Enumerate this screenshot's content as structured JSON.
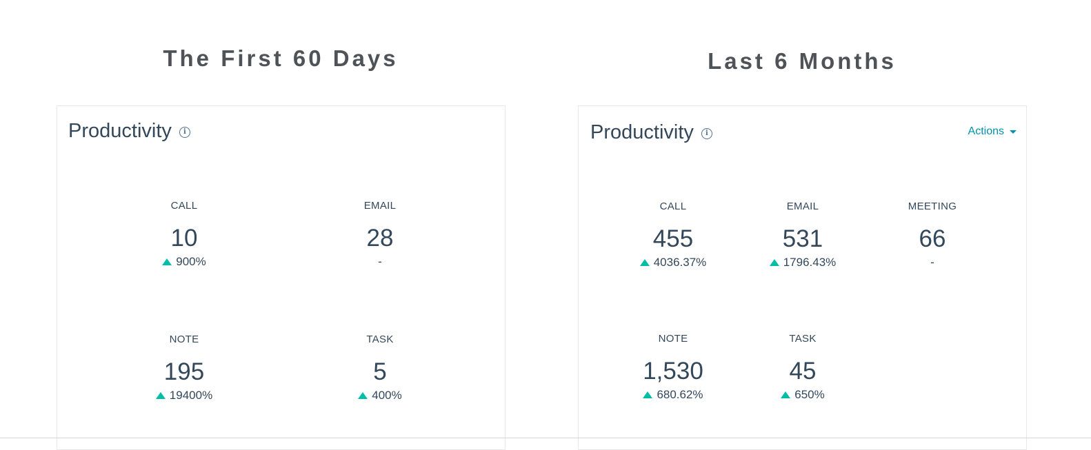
{
  "sections": [
    {
      "title": "The First 60 Days",
      "card_title": "Productivity",
      "metrics": [
        {
          "label": "CALL",
          "value": "10",
          "change": "900%",
          "up": true
        },
        {
          "label": "EMAIL",
          "value": "28",
          "change": "-",
          "up": false
        },
        {
          "label": "NOTE",
          "value": "195",
          "change": "19400%",
          "up": true
        },
        {
          "label": "TASK",
          "value": "5",
          "change": "400%",
          "up": true
        }
      ]
    },
    {
      "title": "Last 6 Months",
      "card_title": "Productivity",
      "actions_label": "Actions",
      "metrics": [
        {
          "label": "CALL",
          "value": "455",
          "change": "4036.37%",
          "up": true
        },
        {
          "label": "EMAIL",
          "value": "531",
          "change": "1796.43%",
          "up": true
        },
        {
          "label": "MEETING",
          "value": "66",
          "change": "-",
          "up": false
        },
        {
          "label": "NOTE",
          "value": "1,530",
          "change": "680.62%",
          "up": true
        },
        {
          "label": "TASK",
          "value": "45",
          "change": "650%",
          "up": true
        }
      ]
    }
  ],
  "icons": {
    "info": "info-icon",
    "caret": "chevron-down-icon",
    "trend": "up-arrow-icon"
  },
  "colors": {
    "accent": "#0091ae",
    "positive": "#00bda5",
    "text": "#33475b"
  }
}
